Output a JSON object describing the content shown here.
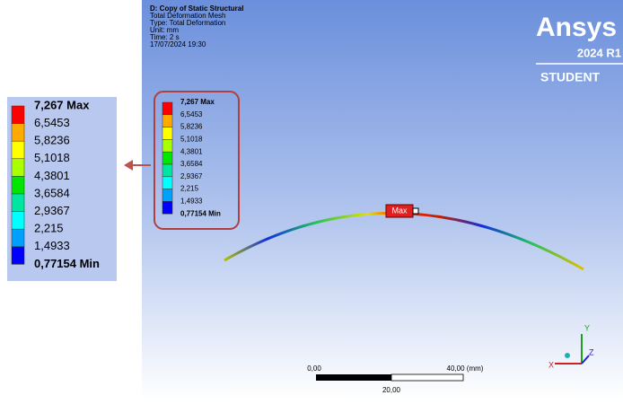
{
  "header": {
    "lines": [
      "D: Copy of Static Structural",
      "Total Deformation Mesh",
      "Type: Total Deformation",
      "Unit: mm",
      "Time: 2 s",
      "17/07/2024 19:30"
    ]
  },
  "brand": {
    "name": "Ansys",
    "version": "2024 R1",
    "edition": "STUDENT"
  },
  "legend": {
    "labels": [
      "7,267 Max",
      "6,5453",
      "5,8236",
      "5,1018",
      "4,3801",
      "3,6584",
      "2,9367",
      "2,215",
      "1,4933",
      "0,77154 Min"
    ],
    "colors": [
      "#ff0000",
      "#ffaa00",
      "#ffff00",
      "#aaff00",
      "#00e600",
      "#00e6a0",
      "#00ffff",
      "#00a0ff",
      "#0000ff"
    ]
  },
  "probe": {
    "label": "Max"
  },
  "scale_bar": {
    "left": "0,00",
    "right": "40,00 (mm)",
    "middle": "20,00"
  },
  "triad": {
    "x": "X",
    "y": "Y",
    "z": "Z"
  }
}
